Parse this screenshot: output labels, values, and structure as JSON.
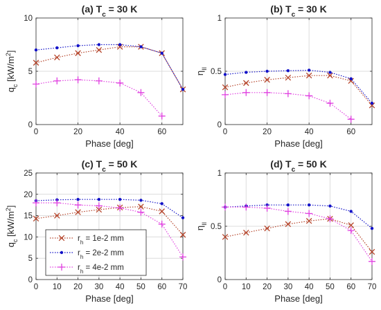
{
  "chart_data": [
    {
      "type": "line",
      "panel": "a",
      "title": "(a) T",
      "title_sub": "c",
      "title_rest": " = 30 K",
      "xlabel": "Phase [deg]",
      "ylabel": "q",
      "ylabel_sub": "c",
      "ylabel_rest": " [kW/m",
      "ylabel_sup": "2",
      "ylabel_end": "]",
      "x": [
        0,
        10,
        20,
        30,
        40,
        50,
        60,
        70
      ],
      "xlim": [
        0,
        70
      ],
      "ylim": [
        0,
        10
      ],
      "xticks": [
        "0",
        "20",
        "40",
        "60"
      ],
      "yticks": [
        "0",
        "5",
        "10"
      ],
      "grid": true,
      "series": [
        {
          "values": [
            5.8,
            6.3,
            6.7,
            7.0,
            7.3,
            7.3,
            6.7,
            3.3
          ]
        },
        {
          "values": [
            7.0,
            7.2,
            7.4,
            7.5,
            7.5,
            7.3,
            6.7,
            3.3
          ]
        },
        {
          "values": [
            3.8,
            4.1,
            4.2,
            4.1,
            3.9,
            3.0,
            0.8,
            null
          ]
        }
      ]
    },
    {
      "type": "line",
      "panel": "b",
      "title": "(b) T",
      "title_sub": "c",
      "title_rest": " = 30 K",
      "xlabel": "Phase [deg]",
      "ylabel": "η",
      "ylabel_sub": "II",
      "x": [
        0,
        10,
        20,
        30,
        40,
        50,
        60,
        70
      ],
      "xlim": [
        0,
        70
      ],
      "ylim": [
        0,
        1
      ],
      "xticks": [
        "0",
        "20",
        "40",
        "60"
      ],
      "yticks": [
        "0",
        "0.5",
        "1"
      ],
      "grid": true,
      "series": [
        {
          "values": [
            0.35,
            0.39,
            0.42,
            0.44,
            0.46,
            0.46,
            0.41,
            0.18
          ]
        },
        {
          "values": [
            0.47,
            0.49,
            0.5,
            0.505,
            0.51,
            0.49,
            0.43,
            0.2
          ]
        },
        {
          "values": [
            0.28,
            0.3,
            0.3,
            0.29,
            0.27,
            0.2,
            0.05,
            null
          ]
        }
      ]
    },
    {
      "type": "line",
      "panel": "c",
      "title": "(c) T",
      "title_sub": "c",
      "title_rest": " = 50 K",
      "xlabel": "Phase [deg]",
      "ylabel": "q",
      "ylabel_sub": "c",
      "ylabel_rest": " [kW/m",
      "ylabel_sup": "2",
      "ylabel_end": "]",
      "x": [
        0,
        10,
        20,
        30,
        40,
        50,
        60,
        70
      ],
      "xlim": [
        0,
        70
      ],
      "ylim": [
        0,
        25
      ],
      "xticks": [
        "0",
        "10",
        "20",
        "30",
        "40",
        "50",
        "60",
        "70"
      ],
      "yticks": [
        "0",
        "5",
        "10",
        "15",
        "20",
        "25"
      ],
      "grid": true,
      "legend": "bottom-left",
      "series": [
        {
          "name": "r",
          "name_sub": "h",
          "name_rest": " = 1e-2 mm",
          "values": [
            14.3,
            15.0,
            15.8,
            16.4,
            16.9,
            17.1,
            16.0,
            10.5
          ]
        },
        {
          "name": "r",
          "name_sub": "h",
          "name_rest": " = 2e-2 mm",
          "values": [
            18.5,
            18.7,
            18.8,
            18.8,
            18.8,
            18.6,
            17.8,
            14.5
          ]
        },
        {
          "name": "r",
          "name_sub": "h",
          "name_rest": " = 4e-2 mm",
          "values": [
            18.0,
            18.0,
            17.5,
            17.3,
            16.8,
            15.8,
            13.0,
            5.3
          ]
        }
      ]
    },
    {
      "type": "line",
      "panel": "d",
      "title": "(d) T",
      "title_sub": "c",
      "title_rest": " = 50 K",
      "xlabel": "Phase [deg]",
      "ylabel": "η",
      "ylabel_sub": "II",
      "x": [
        0,
        10,
        20,
        30,
        40,
        50,
        60,
        70
      ],
      "xlim": [
        0,
        70
      ],
      "ylim": [
        0,
        1
      ],
      "xticks": [
        "0",
        "10",
        "20",
        "30",
        "40",
        "50",
        "60",
        "70"
      ],
      "yticks": [
        "0",
        "0.5",
        "1"
      ],
      "grid": true,
      "series": [
        {
          "values": [
            0.4,
            0.44,
            0.48,
            0.52,
            0.55,
            0.57,
            0.51,
            0.26
          ]
        },
        {
          "values": [
            0.68,
            0.69,
            0.7,
            0.7,
            0.7,
            0.69,
            0.64,
            0.48
          ]
        },
        {
          "values": [
            0.68,
            0.68,
            0.67,
            0.64,
            0.62,
            0.57,
            0.46,
            0.17
          ]
        }
      ]
    }
  ],
  "series_colors": [
    "#b5442a",
    "#1212c8",
    "#e040e0"
  ],
  "series_markers": [
    "x",
    "dot",
    "plus"
  ]
}
